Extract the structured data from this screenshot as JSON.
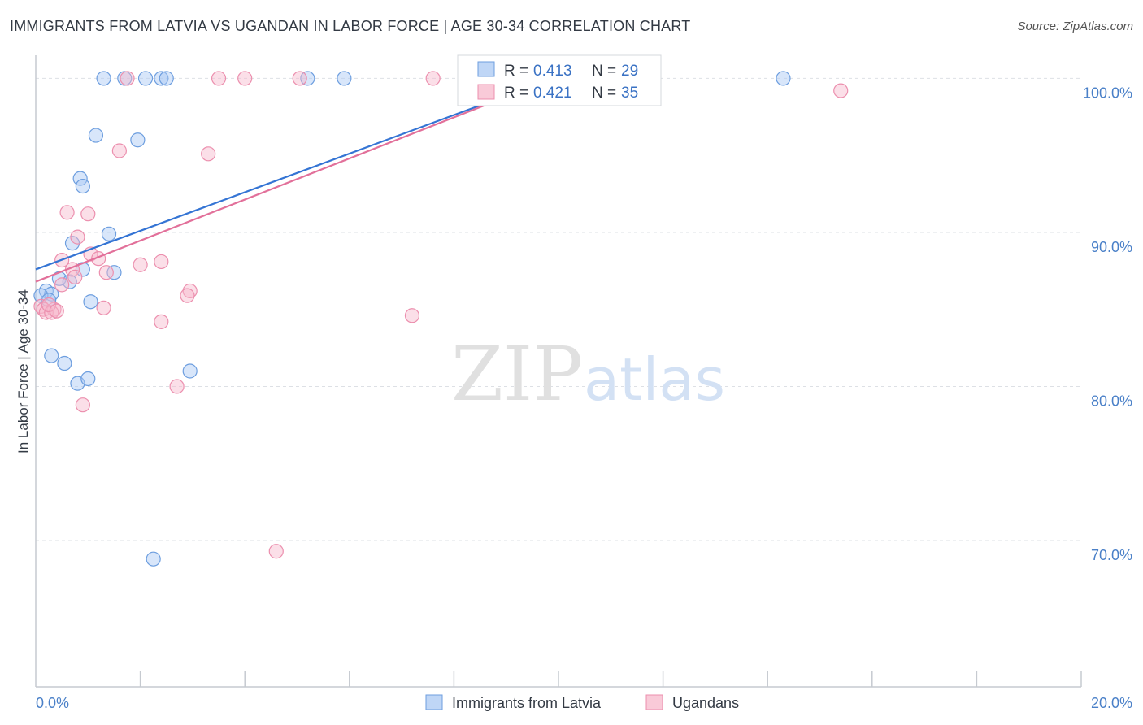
{
  "header": {
    "title": "IMMIGRANTS FROM LATVIA VS UGANDAN IN LABOR FORCE | AGE 30-34 CORRELATION CHART",
    "source": "Source: ZipAtlas.com"
  },
  "watermark": {
    "zip": "ZIP",
    "atlas": "atlas"
  },
  "colors": {
    "blue_fill": "#a9c8f3",
    "blue_stroke": "#6d9edf",
    "blue_line": "#3474d4",
    "pink_fill": "#f7b8cb",
    "pink_stroke": "#ec8fae",
    "pink_line": "#e2709a",
    "tick_label": "#4a80c8",
    "grid": "#dde0e5"
  },
  "legend_top": {
    "rows": [
      {
        "r_label": "R = ",
        "r_value": "0.413",
        "n_label": "N = ",
        "n_value": "29"
      },
      {
        "r_label": "R = ",
        "r_value": "0.421",
        "n_label": "N = ",
        "n_value": "35"
      }
    ]
  },
  "chart_data": {
    "type": "scatter",
    "title": "IMMIGRANTS FROM LATVIA VS UGANDAN IN LABOR FORCE | AGE 30-34 CORRELATION CHART",
    "xlabel": "",
    "ylabel": "In Labor Force | Age 30-34",
    "xlim": [
      0,
      20
    ],
    "ylim": [
      60.5,
      101.5
    ],
    "x_tick_labels": [
      {
        "value": 0,
        "label": "0.0%"
      },
      {
        "value": 20,
        "label": "20.0%"
      }
    ],
    "y_tick_labels": [
      {
        "value": 100,
        "label": "100.0%"
      },
      {
        "value": 90,
        "label": "90.0%"
      },
      {
        "value": 80,
        "label": "80.0%"
      },
      {
        "value": 70,
        "label": "70.0%"
      }
    ],
    "grid": true,
    "legend_position": "bottom",
    "series": [
      {
        "name": "Immigrants from Latvia",
        "color": "#6d9edf",
        "r": 0.413,
        "n": 29,
        "trend": {
          "x": [
            0.0,
            9.9
          ],
          "y": [
            87.6,
            100.0
          ]
        },
        "points": [
          [
            1.3,
            100.0
          ],
          [
            1.7,
            100.0
          ],
          [
            2.1,
            100.0
          ],
          [
            2.4,
            100.0
          ],
          [
            2.5,
            100.0
          ],
          [
            5.2,
            100.0
          ],
          [
            5.9,
            100.0
          ],
          [
            14.3,
            100.0
          ],
          [
            1.15,
            96.3
          ],
          [
            1.95,
            96.0
          ],
          [
            0.85,
            93.5
          ],
          [
            0.9,
            93.0
          ],
          [
            1.4,
            89.9
          ],
          [
            0.7,
            89.3
          ],
          [
            0.9,
            87.6
          ],
          [
            1.5,
            87.4
          ],
          [
            0.45,
            87.0
          ],
          [
            0.65,
            86.8
          ],
          [
            0.2,
            86.2
          ],
          [
            0.3,
            86.0
          ],
          [
            0.1,
            85.9
          ],
          [
            0.25,
            85.6
          ],
          [
            1.05,
            85.5
          ],
          [
            0.3,
            82.0
          ],
          [
            0.55,
            81.5
          ],
          [
            2.95,
            81.0
          ],
          [
            0.8,
            80.2
          ],
          [
            1.0,
            80.5
          ],
          [
            2.25,
            68.8
          ]
        ]
      },
      {
        "name": "Ugandans",
        "color": "#ec8fae",
        "r": 0.421,
        "n": 35,
        "trend": {
          "x": [
            0.0,
            9.9
          ],
          "y": [
            86.8,
            100.0
          ]
        },
        "points": [
          [
            1.75,
            100.0
          ],
          [
            3.5,
            100.0
          ],
          [
            4.0,
            100.0
          ],
          [
            5.05,
            100.0
          ],
          [
            7.6,
            100.0
          ],
          [
            15.4,
            99.2
          ],
          [
            1.6,
            95.3
          ],
          [
            3.3,
            95.1
          ],
          [
            0.6,
            91.3
          ],
          [
            1.0,
            91.2
          ],
          [
            0.8,
            89.7
          ],
          [
            1.05,
            88.6
          ],
          [
            1.2,
            88.3
          ],
          [
            0.5,
            88.2
          ],
          [
            2.4,
            88.1
          ],
          [
            2.0,
            87.9
          ],
          [
            0.7,
            87.6
          ],
          [
            1.35,
            87.4
          ],
          [
            0.75,
            87.1
          ],
          [
            0.5,
            86.6
          ],
          [
            2.95,
            86.2
          ],
          [
            2.9,
            85.9
          ],
          [
            0.1,
            85.2
          ],
          [
            0.15,
            85.0
          ],
          [
            0.35,
            85.0
          ],
          [
            0.2,
            84.8
          ],
          [
            0.3,
            84.8
          ],
          [
            1.3,
            85.1
          ],
          [
            7.2,
            84.6
          ],
          [
            2.4,
            84.2
          ],
          [
            2.7,
            80.0
          ],
          [
            0.9,
            78.8
          ],
          [
            4.6,
            69.3
          ],
          [
            0.25,
            85.3
          ],
          [
            0.4,
            84.9
          ]
        ]
      }
    ]
  }
}
